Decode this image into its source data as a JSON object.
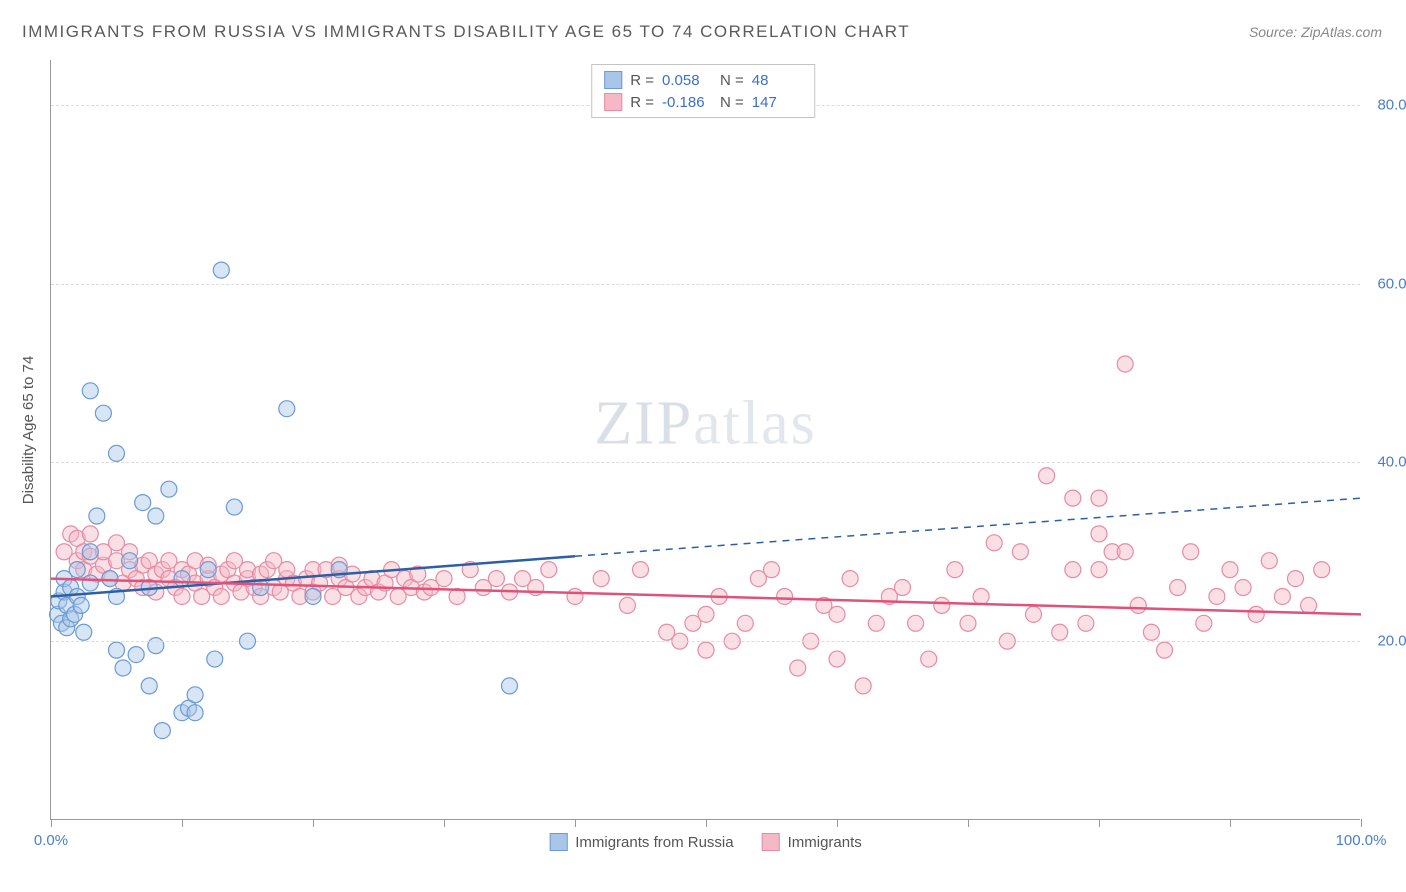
{
  "title": "IMMIGRANTS FROM RUSSIA VS IMMIGRANTS DISABILITY AGE 65 TO 74 CORRELATION CHART",
  "source": "Source: ZipAtlas.com",
  "ylabel": "Disability Age 65 to 74",
  "watermark_bold": "ZIP",
  "watermark_thin": "atlas",
  "chart": {
    "type": "scatter-with-regression",
    "background_color": "#ffffff",
    "grid_color": "#dcdcdc",
    "axis_color": "#999999",
    "label_color": "#4a7ec9",
    "xlim": [
      0,
      100
    ],
    "ylim": [
      0,
      85
    ],
    "yticks": [
      20,
      40,
      60,
      80
    ],
    "ytick_labels": [
      "20.0%",
      "40.0%",
      "60.0%",
      "80.0%"
    ],
    "xticks": [
      0,
      10,
      20,
      30,
      40,
      50,
      60,
      70,
      80,
      90,
      100
    ],
    "xtick_labels_shown": {
      "0": "0.0%",
      "100": "100.0%"
    },
    "marker_radius": 8,
    "marker_opacity": 0.45,
    "line_width_solid": 2.5,
    "line_width_dashed": 1.5
  },
  "series": {
    "russia": {
      "label": "Immigrants from Russia",
      "R": "0.058",
      "N": "48",
      "color_fill": "#a8c6e8",
      "color_stroke": "#6a9bd4",
      "line_color": "#2e5fa3",
      "regression": {
        "x1": 0,
        "y1": 25,
        "x2": 40,
        "y2": 29.5,
        "x2_dash": 100,
        "y2_dash": 36
      },
      "points": [
        [
          0.5,
          23
        ],
        [
          0.6,
          24.5
        ],
        [
          0.8,
          22
        ],
        [
          1,
          25.5
        ],
        [
          1,
          27
        ],
        [
          1.2,
          24
        ],
        [
          1.2,
          21.5
        ],
        [
          1.5,
          22.5
        ],
        [
          1.5,
          26
        ],
        [
          1.8,
          23
        ],
        [
          2,
          25
        ],
        [
          2,
          28
        ],
        [
          2.3,
          24
        ],
        [
          2.5,
          21
        ],
        [
          3,
          30
        ],
        [
          3,
          26.5
        ],
        [
          3,
          48
        ],
        [
          3.5,
          34
        ],
        [
          4,
          45.5
        ],
        [
          4.5,
          27
        ],
        [
          5,
          19
        ],
        [
          5,
          41
        ],
        [
          5,
          25
        ],
        [
          5.5,
          17
        ],
        [
          6,
          29
        ],
        [
          6.5,
          18.5
        ],
        [
          7,
          35.5
        ],
        [
          7.5,
          26
        ],
        [
          7.5,
          15
        ],
        [
          8,
          19.5
        ],
        [
          8,
          34
        ],
        [
          8.5,
          10
        ],
        [
          9,
          37
        ],
        [
          10,
          27
        ],
        [
          10,
          12
        ],
        [
          10.5,
          12.5
        ],
        [
          11,
          14
        ],
        [
          11,
          12
        ],
        [
          12,
          28
        ],
        [
          12.5,
          18
        ],
        [
          13,
          61.5
        ],
        [
          14,
          35
        ],
        [
          15,
          20
        ],
        [
          16,
          26
        ],
        [
          18,
          46
        ],
        [
          20,
          25
        ],
        [
          22,
          28
        ],
        [
          35,
          15
        ]
      ]
    },
    "immigrants": {
      "label": "Immigrants",
      "R": "-0.186",
      "N": "147",
      "color_fill": "#f4b8c6",
      "color_stroke": "#e88ba5",
      "line_color": "#e0527a",
      "regression": {
        "x1": 0,
        "y1": 27,
        "x2": 100,
        "y2": 23
      },
      "points": [
        [
          1,
          30
        ],
        [
          1.5,
          32
        ],
        [
          2,
          29
        ],
        [
          2,
          31.5
        ],
        [
          2.5,
          28
        ],
        [
          2.5,
          30
        ],
        [
          3,
          29.5
        ],
        [
          3,
          32
        ],
        [
          3.5,
          27.5
        ],
        [
          4,
          28.5
        ],
        [
          4,
          30
        ],
        [
          4.5,
          27
        ],
        [
          5,
          29
        ],
        [
          5,
          31
        ],
        [
          5.5,
          26.5
        ],
        [
          6,
          28
        ],
        [
          6,
          30
        ],
        [
          6.5,
          27
        ],
        [
          7,
          28.5
        ],
        [
          7,
          26
        ],
        [
          7.5,
          29
        ],
        [
          8,
          27.5
        ],
        [
          8,
          25.5
        ],
        [
          8.5,
          28
        ],
        [
          9,
          27
        ],
        [
          9,
          29
        ],
        [
          9.5,
          26
        ],
        [
          10,
          28
        ],
        [
          10,
          25
        ],
        [
          10.5,
          27.5
        ],
        [
          11,
          26.5
        ],
        [
          11,
          29
        ],
        [
          11.5,
          25
        ],
        [
          12,
          27
        ],
        [
          12,
          28.5
        ],
        [
          12.5,
          26
        ],
        [
          13,
          27.5
        ],
        [
          13,
          25
        ],
        [
          13.5,
          28
        ],
        [
          14,
          26.5
        ],
        [
          14,
          29
        ],
        [
          14.5,
          25.5
        ],
        [
          15,
          27
        ],
        [
          15,
          28
        ],
        [
          15.5,
          26
        ],
        [
          16,
          27.5
        ],
        [
          16,
          25
        ],
        [
          16.5,
          28
        ],
        [
          17,
          26
        ],
        [
          17,
          29
        ],
        [
          17.5,
          25.5
        ],
        [
          18,
          27
        ],
        [
          18,
          28
        ],
        [
          18.5,
          26.5
        ],
        [
          19,
          25
        ],
        [
          19.5,
          27
        ],
        [
          20,
          28
        ],
        [
          20,
          25.5
        ],
        [
          20.5,
          26.5
        ],
        [
          21,
          28
        ],
        [
          21.5,
          25
        ],
        [
          22,
          27
        ],
        [
          22,
          28.5
        ],
        [
          22.5,
          26
        ],
        [
          23,
          27.5
        ],
        [
          23.5,
          25
        ],
        [
          24,
          26
        ],
        [
          24.5,
          27
        ],
        [
          25,
          25.5
        ],
        [
          25.5,
          26.5
        ],
        [
          26,
          28
        ],
        [
          26.5,
          25
        ],
        [
          27,
          27
        ],
        [
          27.5,
          26
        ],
        [
          28,
          27.5
        ],
        [
          28.5,
          25.5
        ],
        [
          29,
          26
        ],
        [
          30,
          27
        ],
        [
          31,
          25
        ],
        [
          32,
          28
        ],
        [
          33,
          26
        ],
        [
          34,
          27
        ],
        [
          35,
          25.5
        ],
        [
          36,
          27
        ],
        [
          37,
          26
        ],
        [
          38,
          28
        ],
        [
          40,
          25
        ],
        [
          42,
          27
        ],
        [
          44,
          24
        ],
        [
          45,
          28
        ],
        [
          47,
          21
        ],
        [
          48,
          20
        ],
        [
          49,
          22
        ],
        [
          50,
          19
        ],
        [
          50,
          23
        ],
        [
          51,
          25
        ],
        [
          52,
          20
        ],
        [
          53,
          22
        ],
        [
          54,
          27
        ],
        [
          55,
          28
        ],
        [
          56,
          25
        ],
        [
          57,
          17
        ],
        [
          58,
          20
        ],
        [
          59,
          24
        ],
        [
          60,
          18
        ],
        [
          60,
          23
        ],
        [
          61,
          27
        ],
        [
          62,
          15
        ],
        [
          63,
          22
        ],
        [
          64,
          25
        ],
        [
          65,
          26
        ],
        [
          66,
          22
        ],
        [
          67,
          18
        ],
        [
          68,
          24
        ],
        [
          69,
          28
        ],
        [
          70,
          22
        ],
        [
          71,
          25
        ],
        [
          72,
          31
        ],
        [
          73,
          20
        ],
        [
          74,
          30
        ],
        [
          75,
          23
        ],
        [
          76,
          38.5
        ],
        [
          77,
          21
        ],
        [
          78,
          28
        ],
        [
          78,
          36
        ],
        [
          79,
          22
        ],
        [
          80,
          32
        ],
        [
          80,
          28
        ],
        [
          80,
          36
        ],
        [
          81,
          30
        ],
        [
          82,
          30
        ],
        [
          82,
          51
        ],
        [
          83,
          24
        ],
        [
          84,
          21
        ],
        [
          85,
          19
        ],
        [
          86,
          26
        ],
        [
          87,
          30
        ],
        [
          88,
          22
        ],
        [
          89,
          25
        ],
        [
          90,
          28
        ],
        [
          91,
          26
        ],
        [
          92,
          23
        ],
        [
          93,
          29
        ],
        [
          94,
          25
        ],
        [
          95,
          27
        ],
        [
          96,
          24
        ],
        [
          97,
          28
        ]
      ]
    }
  },
  "legend_top": {
    "r_label": "R =",
    "n_label": "N ="
  },
  "legend_bottom": {
    "items": [
      "russia",
      "immigrants"
    ]
  }
}
